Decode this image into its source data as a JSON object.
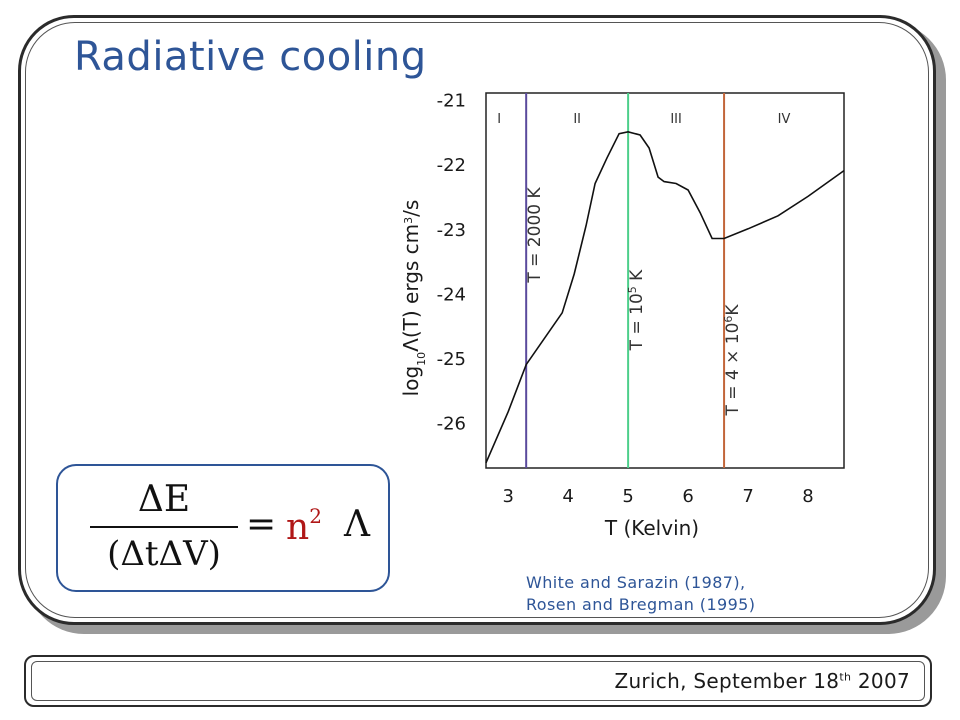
{
  "slide": {
    "title": "Radiative cooling"
  },
  "chart_data": {
    "type": "line",
    "xlabel": "T (Kelvin)",
    "ylabel": "log10Λ(T) ergs cm3/s",
    "ylabel_parts": {
      "log": "log",
      "base": "10",
      "lambda": "Λ",
      "mid": "(T) ergs cm",
      "exp": "3",
      "end": "/s"
    },
    "x_ticks": [
      3,
      4,
      5,
      6,
      7,
      8
    ],
    "y_ticks": [
      -21,
      -22,
      -23,
      -24,
      -25,
      -26
    ],
    "xlim": [
      2.63,
      8.6
    ],
    "ylim": [
      -26.7,
      -20.9
    ],
    "grid": false,
    "series": [
      {
        "color": "#111111",
        "points": [
          [
            2.63,
            -26.62
          ],
          [
            3.0,
            -25.83
          ],
          [
            3.3,
            -25.1
          ],
          [
            3.6,
            -24.7
          ],
          [
            3.9,
            -24.3
          ],
          [
            4.1,
            -23.7
          ],
          [
            4.3,
            -22.95
          ],
          [
            4.45,
            -22.3
          ],
          [
            4.65,
            -21.9
          ],
          [
            4.85,
            -21.53
          ],
          [
            5.0,
            -21.5
          ],
          [
            5.2,
            -21.55
          ],
          [
            5.35,
            -21.75
          ],
          [
            5.5,
            -22.2
          ],
          [
            5.6,
            -22.27
          ],
          [
            5.8,
            -22.3
          ],
          [
            6.0,
            -22.4
          ],
          [
            6.2,
            -22.75
          ],
          [
            6.4,
            -23.15
          ],
          [
            6.6,
            -23.15
          ],
          [
            7.0,
            -23.0
          ],
          [
            7.5,
            -22.8
          ],
          [
            8.0,
            -22.5
          ],
          [
            8.6,
            -22.1
          ]
        ]
      }
    ],
    "vertical_lines": [
      {
        "x": 3.3,
        "color": "#5a4a9c",
        "label": "T = 2000 K"
      },
      {
        "x": 5.0,
        "color": "#4ccf8a",
        "label": "T = 10",
        "label_exp": "5",
        "label_end": " K"
      },
      {
        "x": 6.6,
        "color": "#c2663a",
        "label": "T = 4 × 10",
        "label_exp": "6",
        "label_end": "K"
      }
    ],
    "regions": [
      {
        "label": "I",
        "x": 2.85
      },
      {
        "label": "II",
        "x": 4.15
      },
      {
        "label": "III",
        "x": 5.8
      },
      {
        "label": "IV",
        "x": 7.6
      }
    ]
  },
  "formula": {
    "numerator": "ΔE",
    "denominator": "(ΔtΔV)",
    "equals": "=",
    "n": "n",
    "power": "2",
    "lambda": "Λ"
  },
  "citation": {
    "line1": "White and Sarazin (1987),",
    "line2": "Rosen and Bregman (1995)"
  },
  "footer": {
    "text": "Zurich,  September 18",
    "sup": "th",
    "year": " 2007"
  }
}
